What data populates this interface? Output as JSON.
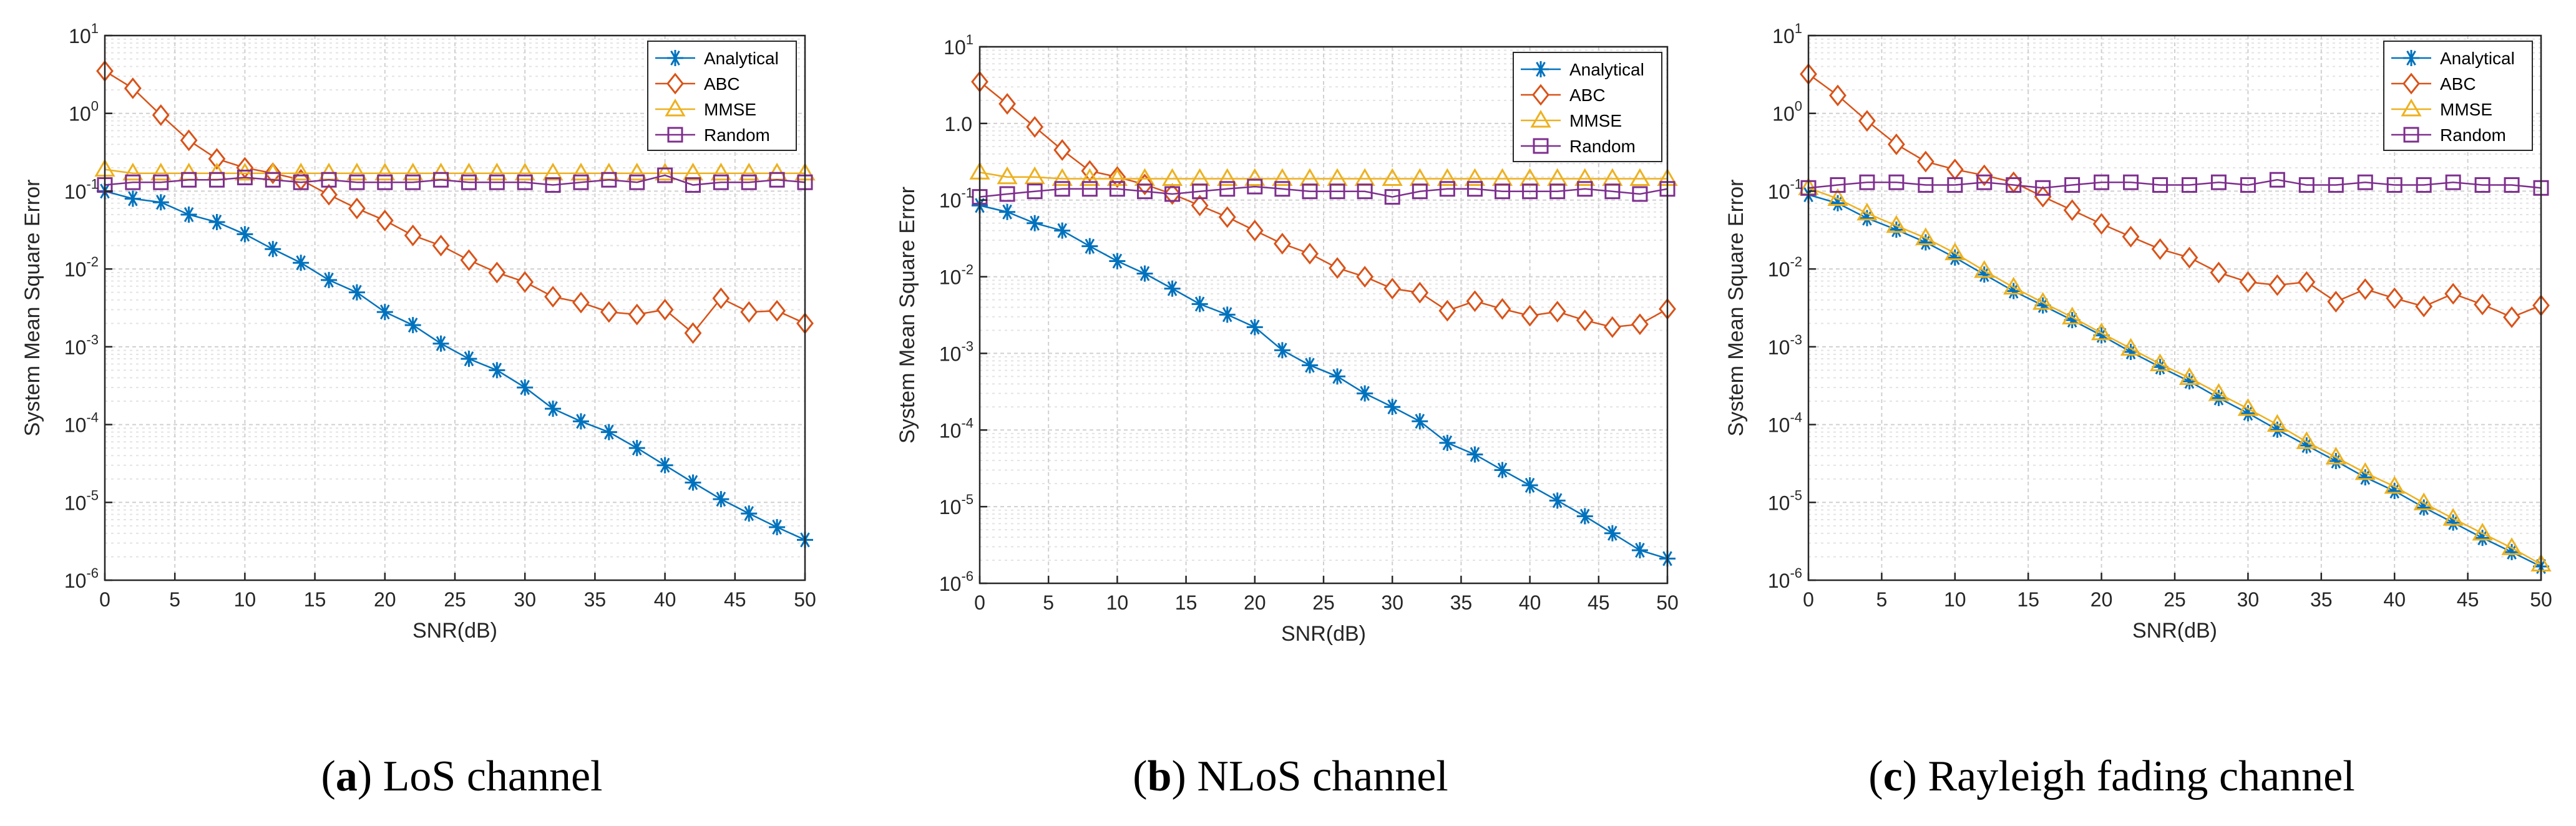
{
  "figure": {
    "captions": [
      {
        "letter": "a",
        "text": "LoS channel"
      },
      {
        "letter": "b",
        "text": "NLoS channel"
      },
      {
        "letter": "c",
        "text": "Rayleigh fading channel"
      }
    ]
  },
  "colors": {
    "Analytical": "#0072BD",
    "ABC": "#D95319",
    "MMSE": "#EDB120",
    "Random": "#7E2F8E"
  },
  "chart_data": [
    {
      "type": "line",
      "title": "",
      "xlabel": "SNR(dB)",
      "ylabel": "System Mean Square Error",
      "yscale": "log",
      "xlim": [
        0,
        50
      ],
      "ylim_exp": [
        -6,
        1
      ],
      "xticks": [
        0,
        5,
        10,
        15,
        20,
        25,
        30,
        35,
        40,
        45,
        50
      ],
      "ytick_labels": [
        {
          "base": "10",
          "exp": "-6"
        },
        {
          "base": "10",
          "exp": "-5"
        },
        {
          "base": "10",
          "exp": "-4"
        },
        {
          "base": "10",
          "exp": "-3"
        },
        {
          "base": "10",
          "exp": "-2"
        },
        {
          "base": "10",
          "exp": "-1"
        },
        {
          "base": "10",
          "exp": "0"
        },
        {
          "base": "10",
          "exp": "1"
        }
      ],
      "legend_position": "top-right",
      "x": [
        0,
        2,
        4,
        6,
        8,
        10,
        12,
        14,
        16,
        18,
        20,
        22,
        24,
        26,
        28,
        30,
        32,
        34,
        36,
        38,
        40,
        42,
        44,
        46,
        48,
        50
      ],
      "series": [
        {
          "name": "Analytical",
          "marker": "asterisk",
          "values": [
            0.1,
            0.08,
            0.072,
            0.05,
            0.04,
            0.028,
            0.018,
            0.012,
            0.0072,
            0.005,
            0.0028,
            0.0019,
            0.0011,
            0.0007,
            0.0005,
            0.0003,
            0.00016,
            0.00011,
            8e-05,
            5e-05,
            3e-05,
            1.8e-05,
            1.1e-05,
            7.2e-06,
            4.8e-06,
            3.3e-06
          ]
        },
        {
          "name": "ABC",
          "marker": "diamond",
          "values": [
            3.5,
            2.1,
            0.95,
            0.45,
            0.26,
            0.2,
            0.17,
            0.14,
            0.09,
            0.06,
            0.042,
            0.027,
            0.02,
            0.013,
            0.009,
            0.0068,
            0.0044,
            0.0037,
            0.0028,
            0.0026,
            0.003,
            0.0015,
            0.0042,
            0.0028,
            0.0029,
            0.002
          ]
        },
        {
          "name": "MMSE",
          "marker": "triangle",
          "values": [
            0.19,
            0.17,
            0.17,
            0.17,
            0.17,
            0.17,
            0.17,
            0.17,
            0.17,
            0.17,
            0.17,
            0.17,
            0.17,
            0.17,
            0.17,
            0.17,
            0.17,
            0.17,
            0.17,
            0.17,
            0.17,
            0.17,
            0.17,
            0.17,
            0.17,
            0.17
          ]
        },
        {
          "name": "Random",
          "marker": "square",
          "values": [
            0.12,
            0.13,
            0.13,
            0.14,
            0.14,
            0.15,
            0.14,
            0.13,
            0.14,
            0.13,
            0.13,
            0.13,
            0.14,
            0.13,
            0.13,
            0.13,
            0.12,
            0.13,
            0.14,
            0.13,
            0.16,
            0.12,
            0.13,
            0.13,
            0.14,
            0.13
          ]
        }
      ]
    },
    {
      "type": "line",
      "title": "",
      "xlabel": "SNR(dB)",
      "ylabel": "System Mean Square Error",
      "yscale": "log",
      "xlim": [
        0,
        50
      ],
      "ylim_exp": [
        -6,
        1
      ],
      "xticks": [
        0,
        5,
        10,
        15,
        20,
        25,
        30,
        35,
        40,
        45,
        50
      ],
      "ytick_labels": [
        {
          "base": "10",
          "exp": "-6"
        },
        {
          "base": "10",
          "exp": "-5"
        },
        {
          "base": "10",
          "exp": "-4"
        },
        {
          "base": "10",
          "exp": "-3"
        },
        {
          "base": "10",
          "exp": "-2"
        },
        {
          "base": "10",
          "exp": "-1"
        },
        {
          "base": "1.0",
          "exp": ""
        },
        {
          "base": "10",
          "exp": "1"
        }
      ],
      "legend_position": "top-right",
      "x": [
        0,
        2,
        4,
        6,
        8,
        10,
        12,
        14,
        16,
        18,
        20,
        22,
        24,
        26,
        28,
        30,
        32,
        34,
        36,
        38,
        40,
        42,
        44,
        46,
        48,
        50
      ],
      "series": [
        {
          "name": "Analytical",
          "marker": "asterisk",
          "values": [
            0.085,
            0.07,
            0.05,
            0.04,
            0.025,
            0.016,
            0.011,
            0.007,
            0.0044,
            0.0032,
            0.0022,
            0.0011,
            0.0007,
            0.0005,
            0.0003,
            0.0002,
            0.00013,
            6.8e-05,
            4.8e-05,
            3e-05,
            1.9e-05,
            1.2e-05,
            7.5e-06,
            4.5e-06,
            2.7e-06,
            2.1e-06
          ]
        },
        {
          "name": "ABC",
          "marker": "diamond",
          "values": [
            3.5,
            1.8,
            0.9,
            0.45,
            0.24,
            0.2,
            0.16,
            0.12,
            0.085,
            0.06,
            0.04,
            0.027,
            0.02,
            0.013,
            0.01,
            0.007,
            0.0062,
            0.0036,
            0.0048,
            0.0038,
            0.0031,
            0.0035,
            0.0027,
            0.0022,
            0.0024,
            0.0038
          ]
        },
        {
          "name": "MMSE",
          "marker": "triangle",
          "values": [
            0.23,
            0.2,
            0.2,
            0.19,
            0.19,
            0.19,
            0.19,
            0.19,
            0.19,
            0.19,
            0.19,
            0.19,
            0.19,
            0.19,
            0.19,
            0.19,
            0.19,
            0.19,
            0.19,
            0.19,
            0.19,
            0.19,
            0.19,
            0.19,
            0.19,
            0.19
          ]
        },
        {
          "name": "Random",
          "marker": "square",
          "values": [
            0.11,
            0.12,
            0.13,
            0.14,
            0.14,
            0.14,
            0.13,
            0.12,
            0.13,
            0.14,
            0.15,
            0.14,
            0.13,
            0.13,
            0.13,
            0.11,
            0.13,
            0.14,
            0.14,
            0.13,
            0.13,
            0.13,
            0.14,
            0.13,
            0.12,
            0.14
          ]
        }
      ]
    },
    {
      "type": "line",
      "title": "",
      "xlabel": "SNR(dB)",
      "ylabel": "System Mean Square Error",
      "yscale": "log",
      "xlim": [
        0,
        50
      ],
      "ylim_exp": [
        -6,
        1
      ],
      "xticks": [
        0,
        5,
        10,
        15,
        20,
        25,
        30,
        35,
        40,
        45,
        50
      ],
      "ytick_labels": [
        {
          "base": "10",
          "exp": "-6"
        },
        {
          "base": "10",
          "exp": "-5"
        },
        {
          "base": "10",
          "exp": "-4"
        },
        {
          "base": "10",
          "exp": "-3"
        },
        {
          "base": "10",
          "exp": "-2"
        },
        {
          "base": "10",
          "exp": "-1"
        },
        {
          "base": "10",
          "exp": "0"
        },
        {
          "base": "10",
          "exp": "1"
        }
      ],
      "legend_position": "top-right",
      "x": [
        0,
        2,
        4,
        6,
        8,
        10,
        12,
        14,
        16,
        18,
        20,
        22,
        24,
        26,
        28,
        30,
        32,
        34,
        36,
        38,
        40,
        42,
        44,
        46,
        48,
        50
      ],
      "series": [
        {
          "name": "Analytical",
          "marker": "asterisk",
          "values": [
            0.09,
            0.07,
            0.045,
            0.032,
            0.022,
            0.014,
            0.0085,
            0.0052,
            0.0034,
            0.0022,
            0.0014,
            0.00086,
            0.00055,
            0.00036,
            0.00022,
            0.00014,
            8.6e-05,
            5.4e-05,
            3.4e-05,
            2.1e-05,
            1.4e-05,
            8.6e-06,
            5.5e-06,
            3.5e-06,
            2.3e-06,
            1.5e-06
          ]
        },
        {
          "name": "ABC",
          "marker": "diamond",
          "values": [
            3.2,
            1.7,
            0.8,
            0.4,
            0.24,
            0.19,
            0.16,
            0.13,
            0.085,
            0.057,
            0.038,
            0.026,
            0.018,
            0.014,
            0.009,
            0.0068,
            0.0062,
            0.0068,
            0.0038,
            0.0055,
            0.0042,
            0.0033,
            0.0048,
            0.0035,
            0.0024,
            0.0034
          ]
        },
        {
          "name": "MMSE",
          "marker": "triangle",
          "values": [
            0.11,
            0.08,
            0.052,
            0.036,
            0.025,
            0.016,
            0.0095,
            0.0058,
            0.0037,
            0.0024,
            0.0015,
            0.00095,
            0.0006,
            0.0004,
            0.00025,
            0.00016,
            0.0001,
            6e-05,
            3.8e-05,
            2.4e-05,
            1.6e-05,
            9.8e-06,
            6.2e-06,
            4e-06,
            2.6e-06,
            1.6e-06
          ]
        },
        {
          "name": "Random",
          "marker": "square",
          "values": [
            0.11,
            0.12,
            0.13,
            0.13,
            0.12,
            0.12,
            0.13,
            0.12,
            0.11,
            0.12,
            0.13,
            0.13,
            0.12,
            0.12,
            0.13,
            0.12,
            0.14,
            0.12,
            0.12,
            0.13,
            0.12,
            0.12,
            0.13,
            0.12,
            0.12,
            0.11
          ]
        }
      ]
    }
  ]
}
